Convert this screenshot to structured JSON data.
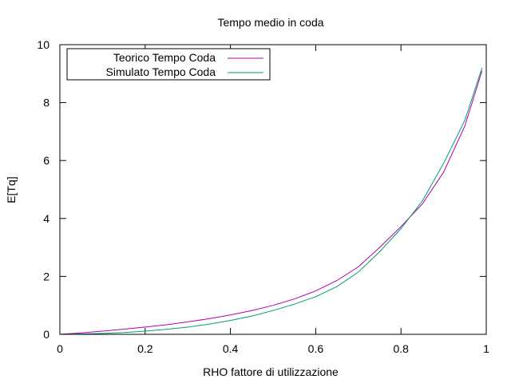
{
  "chart_data": {
    "type": "line",
    "title": "Tempo medio in coda",
    "xlabel": "RHO fattore di utilizzazione",
    "ylabel": "E[Tq]",
    "xlim": [
      0,
      1
    ],
    "ylim": [
      0,
      10
    ],
    "xticks": [
      "0",
      "0.2",
      "0.4",
      "0.6",
      "0.8",
      "1"
    ],
    "yticks": [
      "0",
      "2",
      "4",
      "6",
      "8",
      "10"
    ],
    "grid": false,
    "legend_position": "top-left",
    "series": [
      {
        "name": "Teorico Tempo Coda",
        "color": "#b200b2",
        "x": [
          0.0,
          0.05,
          0.1,
          0.15,
          0.2,
          0.25,
          0.3,
          0.35,
          0.4,
          0.45,
          0.5,
          0.55,
          0.6,
          0.65,
          0.7,
          0.75,
          0.8,
          0.85,
          0.9,
          0.95,
          0.99
        ],
        "y": [
          0.0,
          0.05,
          0.11,
          0.18,
          0.25,
          0.33,
          0.43,
          0.54,
          0.67,
          0.82,
          1.0,
          1.22,
          1.5,
          1.86,
          2.33,
          3.0,
          3.72,
          4.5,
          5.6,
          7.2,
          9.1
        ]
      },
      {
        "name": "Simulato Tempo Coda",
        "color": "#009e73",
        "x": [
          0.0,
          0.05,
          0.1,
          0.15,
          0.2,
          0.25,
          0.3,
          0.35,
          0.4,
          0.45,
          0.5,
          0.55,
          0.6,
          0.65,
          0.7,
          0.75,
          0.8,
          0.85,
          0.9,
          0.95,
          0.99
        ],
        "y": [
          0.0,
          0.01,
          0.03,
          0.06,
          0.11,
          0.17,
          0.25,
          0.35,
          0.48,
          0.63,
          0.82,
          1.04,
          1.3,
          1.65,
          2.15,
          2.85,
          3.65,
          4.6,
          5.9,
          7.4,
          9.2
        ]
      }
    ]
  }
}
